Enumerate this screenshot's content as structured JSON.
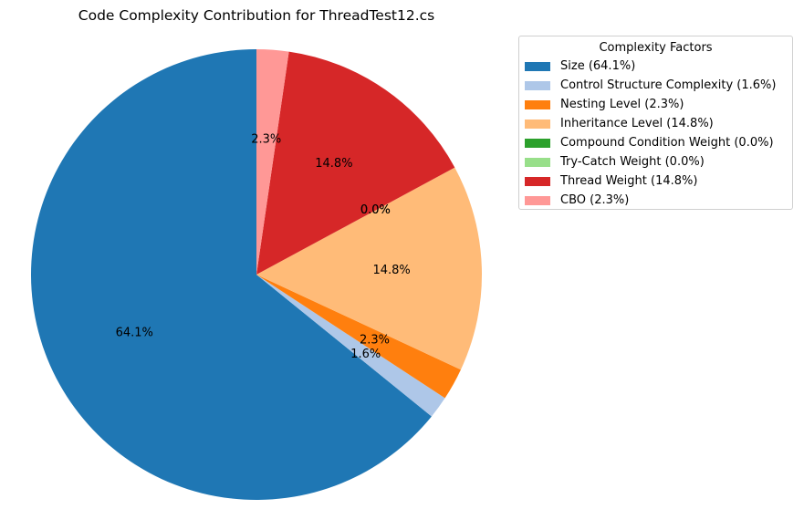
{
  "chart_data": {
    "type": "pie",
    "title": "Code Complexity Contribution for ThreadTest12.cs",
    "legend_title": "Complexity Factors",
    "legend_position": "top-right",
    "start_angle_deg": 90,
    "direction": "counterclockwise",
    "slices": [
      {
        "label": "Size",
        "legend": "Size (64.1%)",
        "value": 64.1,
        "pct_label": "64.1%",
        "color": "#1f77b4"
      },
      {
        "label": "Control Structure Complexity",
        "legend": "Control Structure Complexity (1.6%)",
        "value": 1.6,
        "pct_label": "1.6%",
        "color": "#aec7e8"
      },
      {
        "label": "Nesting Level",
        "legend": "Nesting Level (2.3%)",
        "value": 2.3,
        "pct_label": "2.3%",
        "color": "#ff7f0e"
      },
      {
        "label": "Inheritance Level",
        "legend": "Inheritance Level (14.8%)",
        "value": 14.8,
        "pct_label": "14.8%",
        "color": "#ffbb78"
      },
      {
        "label": "Compound Condition Weight",
        "legend": "Compound Condition Weight (0.0%)",
        "value": 0.0,
        "pct_label": "0.0%",
        "color": "#2ca02c"
      },
      {
        "label": "Try-Catch Weight",
        "legend": "Try-Catch Weight (0.0%)",
        "value": 0.0,
        "pct_label": "0.0%",
        "color": "#98df8a"
      },
      {
        "label": "Thread Weight",
        "legend": "Thread Weight (14.8%)",
        "value": 14.8,
        "pct_label": "14.8%",
        "color": "#d62728"
      },
      {
        "label": "CBO",
        "legend": "CBO (2.3%)",
        "value": 2.3,
        "pct_label": "2.3%",
        "color": "#ff9896"
      }
    ]
  }
}
